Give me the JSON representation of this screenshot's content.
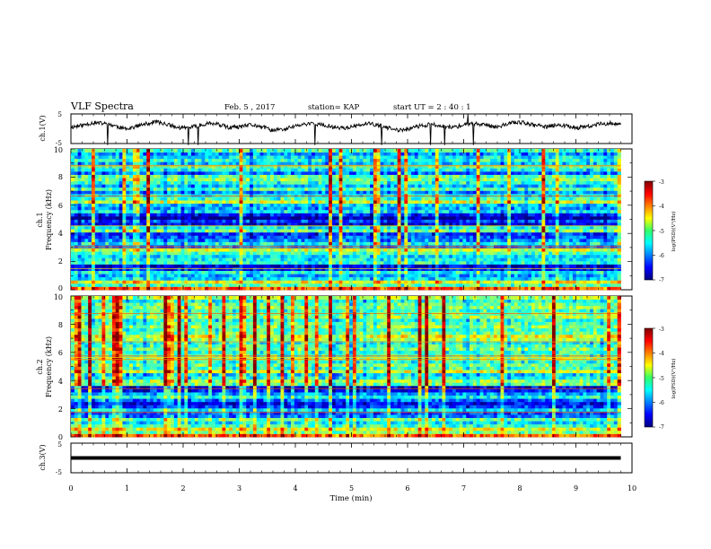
{
  "header": {
    "title": "VLF Spectra",
    "date": "Feb. 5 , 2017",
    "station": "station= KAP",
    "start_time": "start  UT =  2 : 40 : 1"
  },
  "chart_data": [
    {
      "type": "line",
      "panel": "ch1-waveform",
      "ylabel": "ch.1(V)",
      "ylim": [
        -5,
        5
      ],
      "yticks": [
        "5",
        "-5"
      ],
      "xlim": [
        0,
        10
      ],
      "x_extent": 9.8,
      "baseline": 0,
      "series": [
        {
          "values": [
            0.5,
            1.1,
            2.0,
            1.8,
            1.2,
            0.0,
            0.6,
            1.5,
            2.4,
            1.6,
            0.4,
            0.2,
            1.0,
            1.9,
            1.4,
            0.3,
            0.6,
            1.3,
            0.8,
            -0.5,
            -0.3,
            0.7,
            1.4,
            1.8,
            1.0,
            0.5,
            0.3,
            0.9,
            1.7,
            1.3,
            0.2,
            -0.6,
            0.1,
            0.9,
            1.5,
            0.9,
            0.5,
            1.0,
            1.8,
            1.4,
            0.7,
            1.2,
            2.3,
            1.9,
            1.1,
            0.6,
            1.4,
            0.9,
            0.3,
            0.8,
            1.6,
            1.9,
            1.2
          ]
        }
      ]
    },
    {
      "type": "heatmap",
      "panel": "ch1-spectrogram",
      "ylabel_line1": "ch.1",
      "ylabel_line2": "Frequency  (kHz)",
      "ylim": [
        0,
        10
      ],
      "yticks": [
        "0",
        "2",
        "4",
        "6",
        "8",
        "10"
      ],
      "xlim": [
        0,
        10
      ],
      "x_extent": 9.8,
      "colorbar": {
        "label": "log(PSD)(V²/Hz)",
        "range": [
          -7,
          -3
        ],
        "ticks": [
          "-3",
          "-4",
          "-5",
          "-6",
          "-7"
        ]
      },
      "band_levels": [
        -3.8,
        -5.2,
        -4.5,
        -5.6,
        -5.8,
        -5.4,
        -6.4,
        -6.6,
        -5.3,
        -5.5,
        -5.6,
        -5.2,
        -4.7,
        -6.0,
        -5.4,
        -5.9,
        -6.1,
        -6.3,
        -5.0,
        -5.4,
        -6.6,
        -6.2,
        -6.8,
        -6.4,
        -5.5,
        -5.8,
        -5.7,
        -4.6,
        -5.2,
        -5.4,
        -5.9,
        -5.1,
        -5.7,
        -5.3,
        -4.9,
        -5.1,
        -6.0,
        -5.4,
        -5.2,
        -5.7,
        -5.3,
        -5.5,
        -5.9,
        -5.2
      ]
    },
    {
      "type": "heatmap",
      "panel": "ch2-spectrogram",
      "ylabel_line1": "ch.2",
      "ylabel_line2": "Frequency  (kHz)",
      "ylim": [
        0,
        10
      ],
      "yticks": [
        "0",
        "2",
        "4",
        "6",
        "8",
        "10"
      ],
      "xlim": [
        0,
        10
      ],
      "x_extent": 9.8,
      "colorbar": {
        "label": "log(PSD)(V²/Hz)",
        "range": [
          -7,
          -3
        ],
        "ticks": [
          "-3",
          "-4",
          "-5",
          "-6",
          "-7"
        ]
      },
      "band_levels": [
        -3.9,
        -5.0,
        -4.6,
        -5.3,
        -5.6,
        -5.1,
        -6.0,
        -6.2,
        -5.6,
        -6.3,
        -6.5,
        -6.1,
        -5.4,
        -5.8,
        -6.4,
        -6.6,
        -5.0,
        -4.8,
        -5.4,
        -5.6,
        -4.6,
        -5.2,
        -5.0,
        -5.3,
        -4.7,
        -5.1,
        -5.3,
        -4.9,
        -5.2,
        -5.4,
        -4.8,
        -4.5,
        -5.0,
        -5.2,
        -4.9,
        -5.1,
        -5.3,
        -4.8,
        -5.0,
        -5.2,
        -4.9,
        -5.1,
        -5.4,
        -4.8
      ]
    },
    {
      "type": "line",
      "panel": "ch3-waveform",
      "ylabel": "ch.3(V)",
      "ylim": [
        -5,
        5
      ],
      "yticks": [
        "5",
        "-5"
      ],
      "xlim": [
        0,
        10
      ],
      "x_extent": 9.8,
      "series": [
        {
          "values": [
            0.0,
            0.0
          ]
        }
      ],
      "xlabel": "Time  (min)",
      "xticks": [
        "0",
        "1",
        "2",
        "3",
        "4",
        "5",
        "6",
        "7",
        "8",
        "9",
        "10"
      ]
    }
  ]
}
